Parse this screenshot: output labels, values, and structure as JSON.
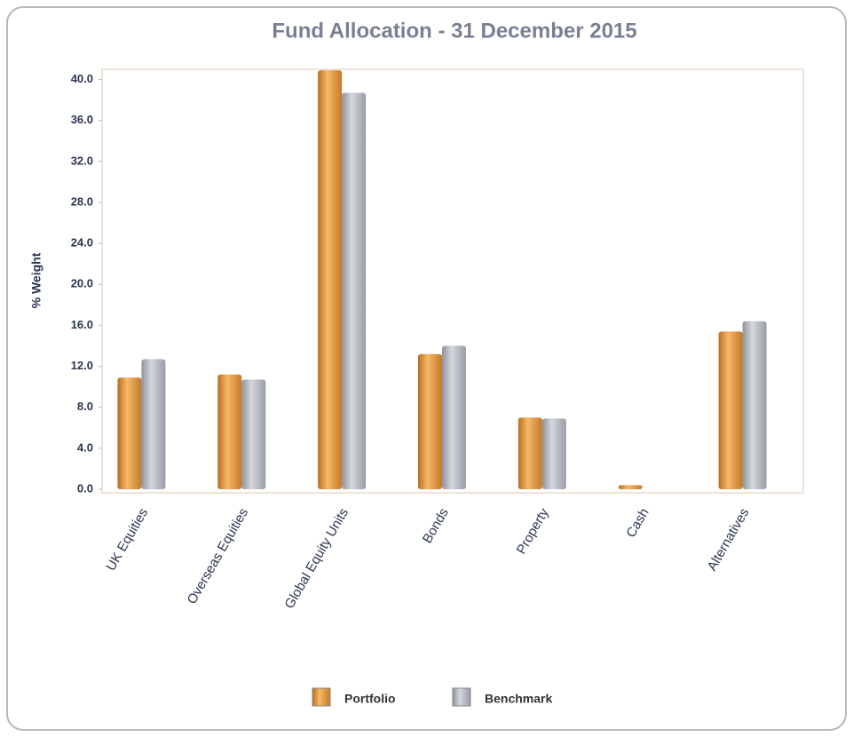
{
  "chart_data": {
    "type": "bar",
    "title": "Fund Allocation - 31 December 2015",
    "y_label": "% Weight",
    "categories": [
      "UK Equities",
      "Overseas Equities",
      "Global Equity Units",
      "Bonds",
      "Property",
      "Cash",
      "Alternatives"
    ],
    "series": [
      {
        "name": "Portfolio",
        "color": "#e8a248",
        "values": [
          10.9,
          11.2,
          40.9,
          13.2,
          7.0,
          0.4,
          15.4
        ]
      },
      {
        "name": "Benchmark",
        "color": "#b9bcc3",
        "values": [
          12.7,
          10.7,
          38.7,
          14.0,
          6.9,
          0,
          16.4
        ]
      }
    ],
    "ylim": [
      0,
      41
    ],
    "yticks": [
      {
        "value": 0,
        "label": "0.0"
      },
      {
        "value": 4,
        "label": "4.0"
      },
      {
        "value": 8,
        "label": "8.0"
      },
      {
        "value": 12,
        "label": "12.0"
      },
      {
        "value": 16,
        "label": "16.0"
      },
      {
        "value": 20,
        "label": "20.0"
      },
      {
        "value": 24,
        "label": "24.0"
      },
      {
        "value": 28,
        "label": "28.0"
      },
      {
        "value": 32,
        "label": "32.0"
      },
      {
        "value": 36,
        "label": "36.0"
      },
      {
        "value": 40,
        "label": "40.0"
      }
    ],
    "legend": "bottom"
  }
}
